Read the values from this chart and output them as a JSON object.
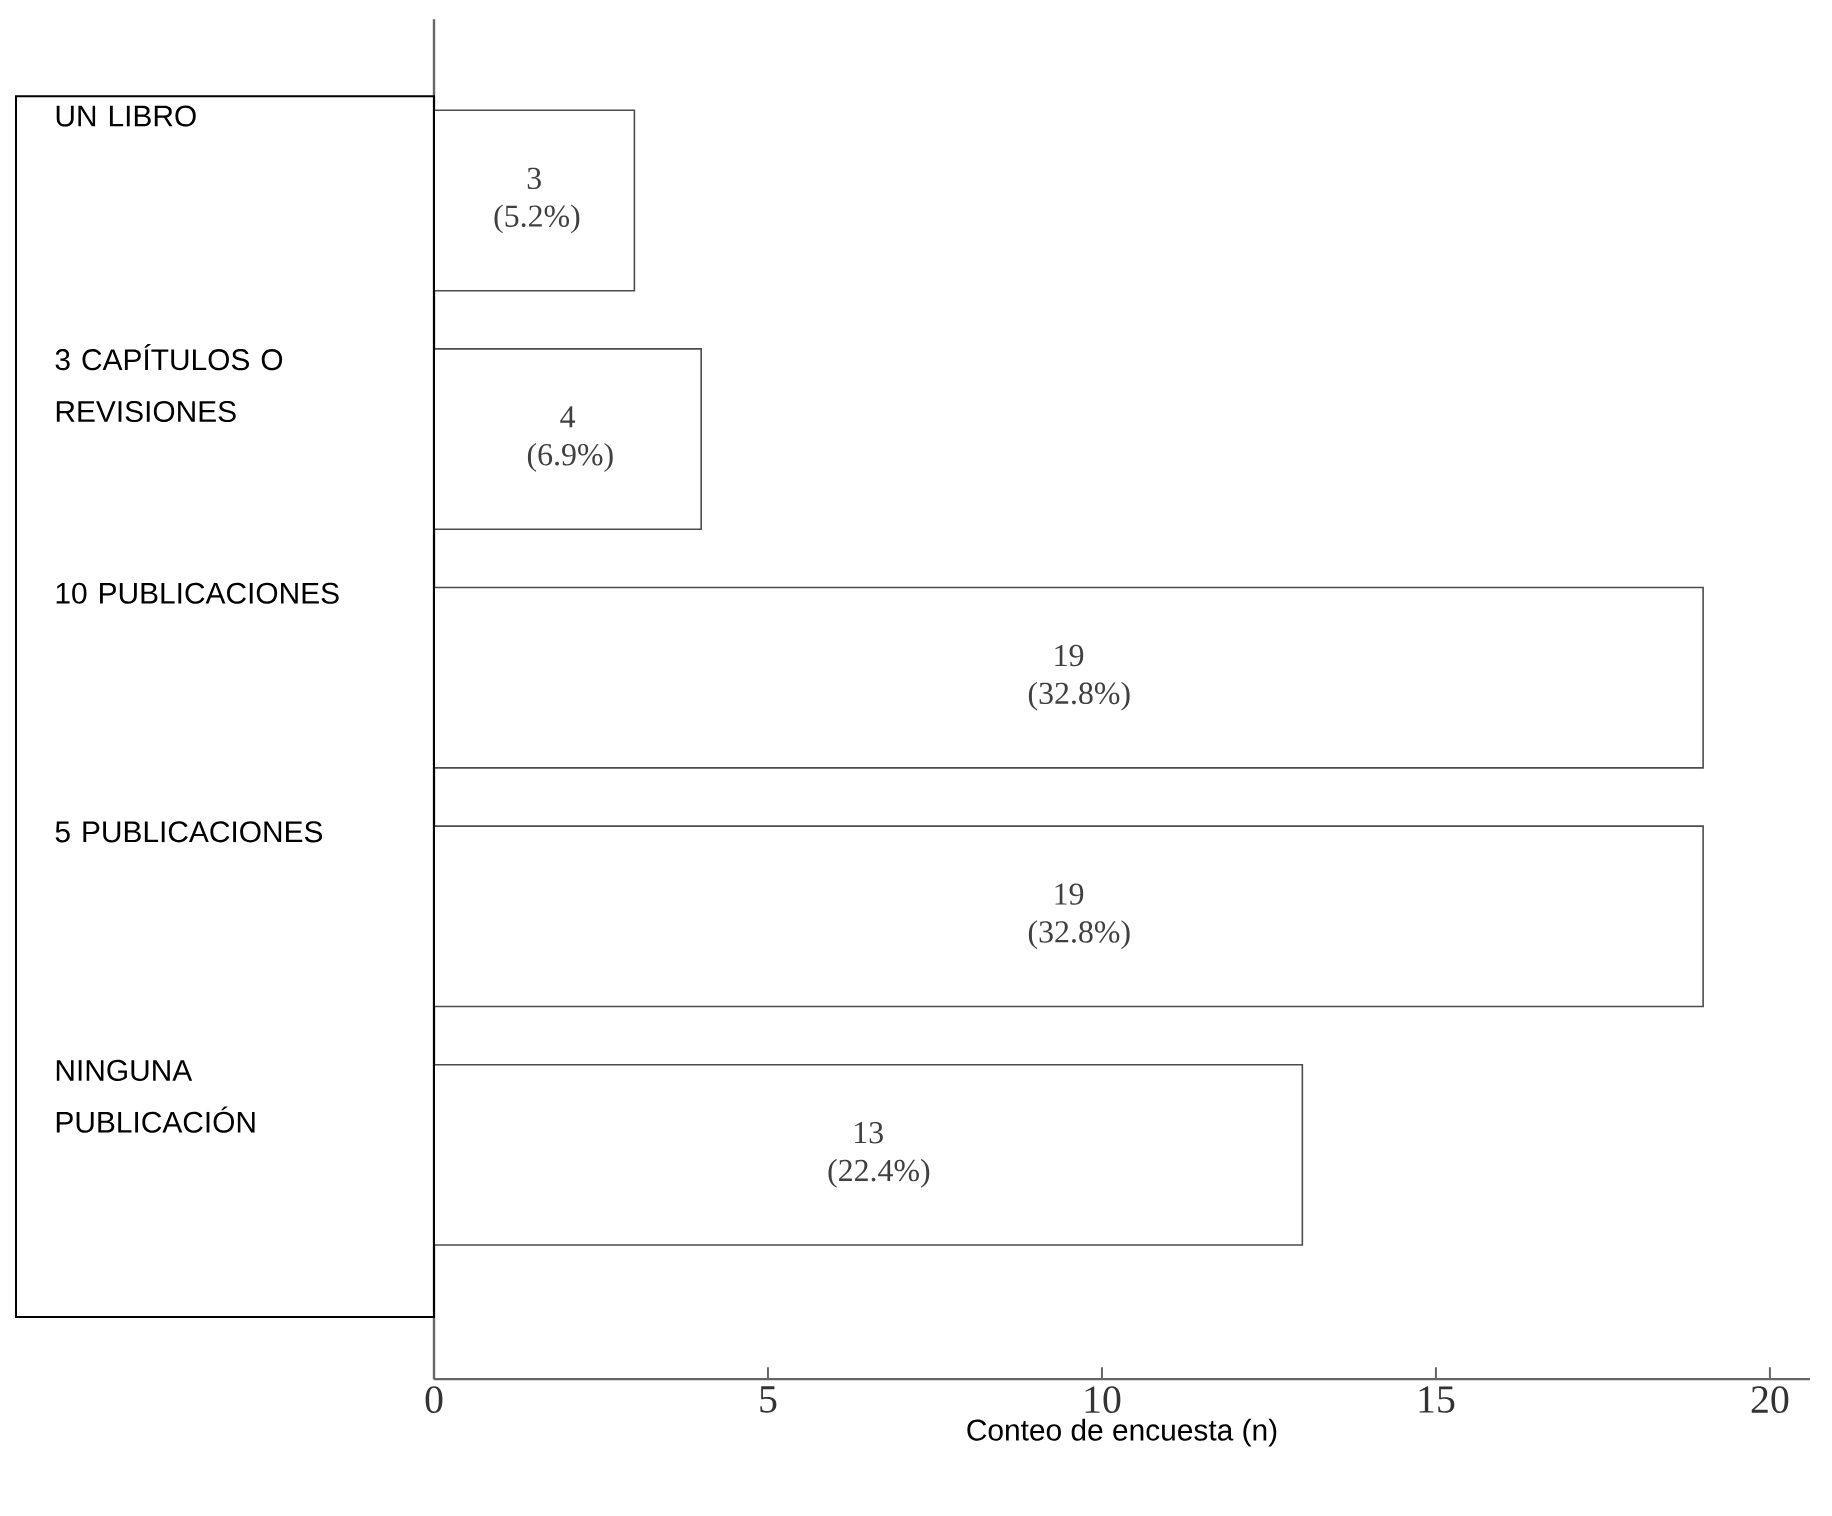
{
  "chart_data": {
    "type": "bar",
    "orientation": "horizontal",
    "xlabel": "Conteo de encuesta (n)",
    "categories": [
      "UN LIBRO",
      "3 CAPÍTULOS O REVISIONES",
      "10 PUBLICACIONES",
      "5 PUBLICACIONES",
      "NINGUNA PUBLICACIÓN"
    ],
    "values": [
      3,
      4,
      19,
      19,
      13
    ],
    "value_labels": [
      "3 (5.2%)",
      "4 (6.9%)",
      "19 (32.8%)",
      "19 (32.8%)",
      "13 (22.4%)"
    ],
    "color": "#ffffff",
    "xlim": [
      0,
      20.6
    ],
    "xticks": [
      0,
      5,
      10,
      15,
      20
    ],
    "grid": false
  }
}
